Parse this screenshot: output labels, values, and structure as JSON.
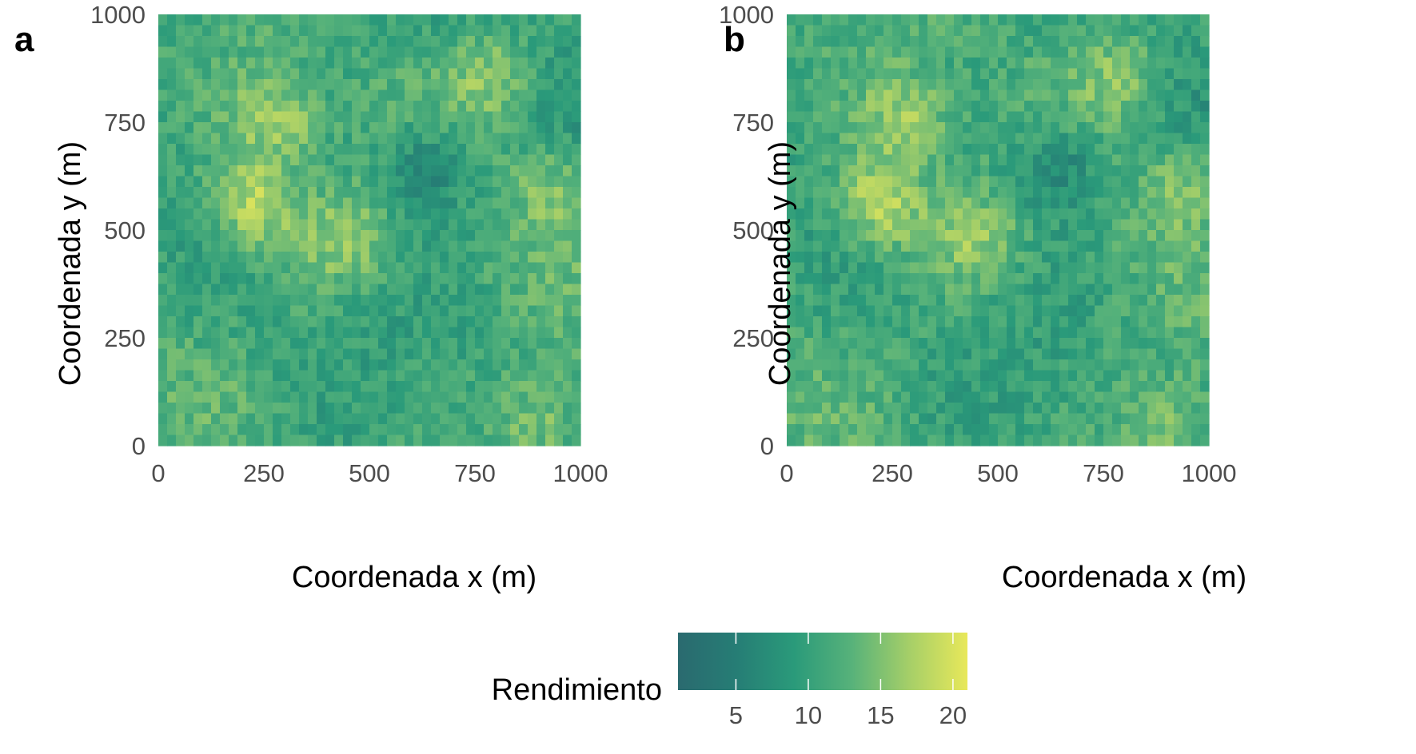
{
  "chart_data": [
    {
      "type": "heatmap",
      "panel_label": "a",
      "xlabel": "Coordenada x (m)",
      "ylabel": "Coordenada y (m)",
      "xlim": [
        0,
        1000
      ],
      "ylim": [
        0,
        1000
      ],
      "x_ticks": [
        "0",
        "250",
        "500",
        "750",
        "1000"
      ],
      "y_ticks": [
        "0",
        "250",
        "500",
        "750",
        "1000"
      ],
      "x_tick_values": [
        0,
        250,
        500,
        750,
        1000
      ],
      "y_tick_values": [
        0,
        250,
        500,
        750,
        1000
      ],
      "grid_cells": [
        48,
        40
      ],
      "value_range": [
        1,
        21
      ],
      "pattern_seed": 17,
      "hotspots": [
        {
          "x": 280,
          "y": 760,
          "value": 17
        },
        {
          "x": 220,
          "y": 560,
          "value": 19
        },
        {
          "x": 440,
          "y": 480,
          "value": 16
        },
        {
          "x": 790,
          "y": 860,
          "value": 16
        },
        {
          "x": 940,
          "y": 600,
          "value": 15
        },
        {
          "x": 640,
          "y": 640,
          "value": 5
        },
        {
          "x": 900,
          "y": 40,
          "value": 16
        }
      ]
    },
    {
      "type": "heatmap",
      "panel_label": "b",
      "xlabel": "Coordenada x (m)",
      "ylabel": "Coordenada y (m)",
      "xlim": [
        0,
        1000
      ],
      "ylim": [
        0,
        1000
      ],
      "x_ticks": [
        "0",
        "250",
        "500",
        "750",
        "1000"
      ],
      "y_ticks": [
        "0",
        "250",
        "500",
        "750",
        "1000"
      ],
      "x_tick_values": [
        0,
        250,
        500,
        750,
        1000
      ],
      "y_tick_values": [
        0,
        250,
        500,
        750,
        1000
      ],
      "grid_cells": [
        48,
        40
      ],
      "value_range": [
        1,
        21
      ],
      "pattern_seed": 17,
      "hotspots": [
        {
          "x": 280,
          "y": 760,
          "value": 17
        },
        {
          "x": 220,
          "y": 560,
          "value": 19
        },
        {
          "x": 440,
          "y": 480,
          "value": 16
        },
        {
          "x": 790,
          "y": 860,
          "value": 16
        },
        {
          "x": 940,
          "y": 600,
          "value": 15
        },
        {
          "x": 640,
          "y": 640,
          "value": 5
        },
        {
          "x": 900,
          "y": 40,
          "value": 16
        }
      ]
    }
  ],
  "legend": {
    "title": "Rendimiento",
    "tick_labels": [
      "5",
      "10",
      "15",
      "20"
    ],
    "tick_values": [
      5,
      10,
      15,
      20
    ],
    "range": [
      1,
      21
    ],
    "colors": [
      "#2a6a6f",
      "#267d75",
      "#2a9a7a",
      "#57b27a",
      "#a6cf68",
      "#e8e85a"
    ]
  }
}
